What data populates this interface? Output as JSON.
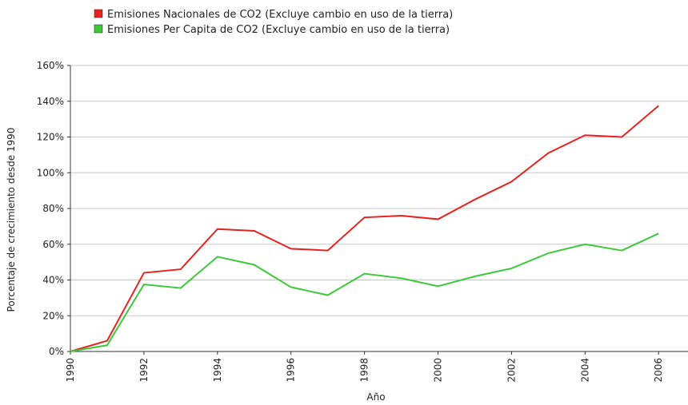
{
  "chart_data": {
    "type": "line",
    "y_label": "Porcentaje de crecimiento desde 1990",
    "x_label": "Año",
    "x": [
      1990,
      1991,
      1992,
      1993,
      1994,
      1995,
      1996,
      1997,
      1998,
      1999,
      2000,
      2001,
      2002,
      2003,
      2004,
      2005,
      2006
    ],
    "series": [
      {
        "name": "Emisiones Nacionales de CO2 (Excluye cambio en uso de la tierra)",
        "color": "#e8221e",
        "values": [
          0,
          6,
          44,
          46,
          68.5,
          67.5,
          57.5,
          56.5,
          75,
          76,
          74,
          85,
          95,
          111,
          121,
          120,
          137.5
        ]
      },
      {
        "name": "Emisiones Per Capita de CO2 (Excluye cambio en uso de la tierra)",
        "color": "#3ec93c",
        "values": [
          0,
          3.5,
          37.5,
          35.5,
          53,
          48.5,
          36,
          31.5,
          43.5,
          41,
          36.5,
          42,
          46.5,
          55,
          60,
          56.5,
          66
        ]
      }
    ],
    "xlim": [
      1990,
      2006.8
    ],
    "xticks": [
      1990,
      1992,
      1994,
      1996,
      1998,
      2000,
      2002,
      2004,
      2006
    ],
    "ylim": [
      0,
      160
    ],
    "yticks": [
      {
        "value": 0,
        "label": "0%"
      },
      {
        "value": 20,
        "label": "20%"
      },
      {
        "value": 40,
        "label": "40%"
      },
      {
        "value": 60,
        "label": "60%"
      },
      {
        "value": 80,
        "label": "80%"
      },
      {
        "value": 100,
        "label": "100%"
      },
      {
        "value": 120,
        "label": "120%"
      },
      {
        "value": 140,
        "label": "140%"
      },
      {
        "value": 160,
        "label": "160%"
      }
    ],
    "grid": true,
    "legend_position": "top-left"
  }
}
